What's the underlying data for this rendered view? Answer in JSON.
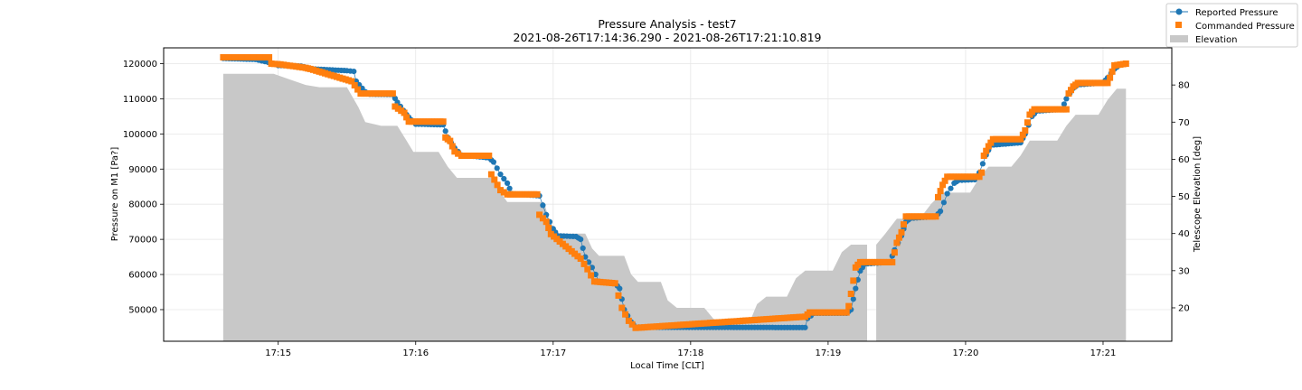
{
  "chart_data": {
    "type": "line",
    "title": "Pressure Analysis - test7",
    "subtitle": "2021-08-26T17:14:36.290 - 2021-08-26T17:21:10.819",
    "xlabel": "Local Time [CLT]",
    "ylabel": "Pressure on M1 [Pa?]",
    "y2label": "Telescope Elevation [deg]",
    "grid": true,
    "legend_position": "top-right",
    "x_ticks": [
      "17:15",
      "17:16",
      "17:17",
      "17:18",
      "17:19",
      "17:20",
      "17:21"
    ],
    "xlim": [
      "17:14:10",
      "17:21:30"
    ],
    "ylim": [
      41000,
      124500
    ],
    "y_ticks": [
      50000,
      60000,
      70000,
      80000,
      90000,
      100000,
      110000,
      120000
    ],
    "y2lim": [
      11,
      90
    ],
    "y2_ticks": [
      20,
      30,
      40,
      50,
      60,
      70,
      80
    ],
    "colors": {
      "reported": "#1f77b4",
      "commanded": "#ff7f0e",
      "elevation": "#c8c8c8"
    },
    "series": [
      {
        "name": "Reported Pressure",
        "marker": "circle",
        "axis": "left",
        "segments": [
          [
            "17:14:36",
            121500
          ],
          [
            "17:14:50",
            121200
          ],
          [
            "17:14:57",
            120200
          ],
          [
            "17:15:00",
            119500
          ],
          [
            "17:15:10",
            119300
          ],
          [
            "17:15:15",
            118500
          ],
          [
            "17:15:30",
            118000
          ],
          [
            "17:15:33",
            117800
          ],
          [
            "17:15:34",
            115000
          ],
          [
            "17:15:38",
            112000
          ],
          [
            "17:15:40",
            111300
          ],
          [
            "17:15:50",
            111200
          ],
          [
            "17:15:52",
            109000
          ],
          [
            "17:15:56",
            105500
          ],
          [
            "17:15:58",
            104000
          ],
          [
            "17:16:00",
            102800
          ],
          [
            "17:16:12",
            102600
          ],
          [
            "17:16:14",
            99000
          ],
          [
            "17:16:17",
            96000
          ],
          [
            "17:16:20",
            94000
          ],
          [
            "17:16:32",
            93200
          ],
          [
            "17:16:34",
            92000
          ],
          [
            "17:16:37",
            88500
          ],
          [
            "17:16:40",
            86000
          ],
          [
            "17:16:42",
            83000
          ],
          [
            "17:16:54",
            82400
          ],
          [
            "17:16:57",
            77000
          ],
          [
            "17:17:00",
            73000
          ],
          [
            "17:17:02",
            71000
          ],
          [
            "17:17:10",
            70800
          ],
          [
            "17:17:12",
            70000
          ],
          [
            "17:17:14",
            65000
          ],
          [
            "17:17:17",
            62000
          ],
          [
            "17:17:20",
            58000
          ],
          [
            "17:17:27",
            57500
          ],
          [
            "17:17:29",
            56000
          ],
          [
            "17:17:31",
            50000
          ],
          [
            "17:17:34",
            46500
          ],
          [
            "17:17:36",
            45000
          ],
          [
            "17:18:50",
            44900
          ],
          [
            "17:18:51",
            47500
          ],
          [
            "17:18:54",
            49000
          ],
          [
            "17:19:08",
            49000
          ],
          [
            "17:19:10",
            50000
          ],
          [
            "17:19:12",
            56000
          ],
          [
            "17:19:14",
            61000
          ],
          [
            "17:19:16",
            63000
          ],
          [
            "17:19:27",
            63500
          ],
          [
            "17:19:29",
            67000
          ],
          [
            "17:19:32",
            71000
          ],
          [
            "17:19:34",
            75000
          ],
          [
            "17:19:36",
            76000
          ],
          [
            "17:19:47",
            76500
          ],
          [
            "17:19:49",
            78000
          ],
          [
            "17:19:52",
            83000
          ],
          [
            "17:19:55",
            86000
          ],
          [
            "17:19:57",
            86800
          ],
          [
            "17:20:04",
            87000
          ],
          [
            "17:20:06",
            89000
          ],
          [
            "17:20:09",
            94000
          ],
          [
            "17:20:11",
            96800
          ],
          [
            "17:20:24",
            97500
          ],
          [
            "17:20:26",
            100000
          ],
          [
            "17:20:29",
            105000
          ],
          [
            "17:20:31",
            106500
          ],
          [
            "17:20:42",
            107000
          ],
          [
            "17:20:44",
            110000
          ],
          [
            "17:20:47",
            113000
          ],
          [
            "17:20:49",
            114000
          ],
          [
            "17:21:00",
            114500
          ],
          [
            "17:21:02",
            116000
          ],
          [
            "17:21:05",
            118500
          ],
          [
            "17:21:07",
            119500
          ],
          [
            "17:21:10",
            120000
          ]
        ]
      },
      {
        "name": "Commanded Pressure",
        "marker": "square",
        "axis": "left",
        "segments": [
          [
            "17:14:36",
            121800
          ],
          [
            "17:14:56",
            121800
          ],
          [
            "17:14:57",
            120000
          ],
          [
            "17:15:01",
            119800
          ],
          [
            "17:15:12",
            118800
          ],
          [
            "17:15:14",
            118500
          ],
          [
            "17:15:32",
            115000
          ],
          [
            "17:15:36",
            111500
          ],
          [
            "17:15:50",
            111500
          ],
          [
            "17:15:51",
            107800
          ],
          [
            "17:15:55",
            106000
          ],
          [
            "17:15:57",
            103500
          ],
          [
            "17:16:12",
            103500
          ],
          [
            "17:16:13",
            99000
          ],
          [
            "17:16:15",
            98000
          ],
          [
            "17:16:17",
            95000
          ],
          [
            "17:16:20",
            93800
          ],
          [
            "17:16:32",
            93800
          ],
          [
            "17:16:33",
            88500
          ],
          [
            "17:16:37",
            84000
          ],
          [
            "17:16:40",
            82800
          ],
          [
            "17:16:53",
            82800
          ],
          [
            "17:16:54",
            77000
          ],
          [
            "17:16:57",
            75000
          ],
          [
            "17:16:59",
            71500
          ],
          [
            "17:17:12",
            64500
          ],
          [
            "17:17:15",
            61500
          ],
          [
            "17:17:18",
            58000
          ],
          [
            "17:17:27",
            57500
          ],
          [
            "17:17:30",
            50500
          ],
          [
            "17:17:33",
            46800
          ],
          [
            "17:17:36",
            44800
          ],
          [
            "17:18:50",
            48000
          ],
          [
            "17:18:52",
            49200
          ],
          [
            "17:19:08",
            49200
          ],
          [
            "17:19:09",
            51000
          ],
          [
            "17:19:10",
            54500
          ],
          [
            "17:19:12",
            62000
          ],
          [
            "17:19:14",
            63500
          ],
          [
            "17:19:28",
            63500
          ],
          [
            "17:19:30",
            69000
          ],
          [
            "17:19:32",
            72000
          ],
          [
            "17:19:34",
            76500
          ],
          [
            "17:19:47",
            76500
          ],
          [
            "17:19:48",
            82000
          ],
          [
            "17:19:50",
            85500
          ],
          [
            "17:19:52",
            87800
          ],
          [
            "17:20:06",
            87800
          ],
          [
            "17:20:07",
            89000
          ],
          [
            "17:20:08",
            93800
          ],
          [
            "17:20:10",
            96500
          ],
          [
            "17:20:12",
            98500
          ],
          [
            "17:20:24",
            98500
          ],
          [
            "17:20:26",
            101000
          ],
          [
            "17:20:28",
            105500
          ],
          [
            "17:20:30",
            107000
          ],
          [
            "17:20:44",
            107000
          ],
          [
            "17:20:45",
            111500
          ],
          [
            "17:20:47",
            113500
          ],
          [
            "17:20:49",
            114500
          ],
          [
            "17:21:02",
            114500
          ],
          [
            "17:21:03",
            116000
          ],
          [
            "17:21:05",
            119500
          ],
          [
            "17:21:10",
            120000
          ]
        ]
      },
      {
        "name": "Elevation",
        "style": "area",
        "axis": "right",
        "points": [
          [
            "17:14:36",
            83
          ],
          [
            "17:14:58",
            83
          ],
          [
            "17:15:05",
            81.5
          ],
          [
            "17:15:12",
            80
          ],
          [
            "17:15:18",
            79.4
          ],
          [
            "17:15:30",
            79.4
          ],
          [
            "17:15:35",
            74
          ],
          [
            "17:15:38",
            70
          ],
          [
            "17:15:45",
            69
          ],
          [
            "17:15:52",
            69
          ],
          [
            "17:15:56",
            65
          ],
          [
            "17:15:59",
            62
          ],
          [
            "17:16:10",
            62
          ],
          [
            "17:16:14",
            58
          ],
          [
            "17:16:18",
            55
          ],
          [
            "17:16:34",
            55
          ],
          [
            "17:16:37",
            51
          ],
          [
            "17:16:40",
            48.5
          ],
          [
            "17:16:56",
            48.5
          ],
          [
            "17:16:59",
            42
          ],
          [
            "17:17:01",
            40
          ],
          [
            "17:17:14",
            40
          ],
          [
            "17:17:17",
            36
          ],
          [
            "17:17:20",
            34
          ],
          [
            "17:17:31",
            34
          ],
          [
            "17:17:34",
            29
          ],
          [
            "17:17:37",
            27
          ],
          [
            "17:17:47",
            27
          ],
          [
            "17:17:50",
            22
          ],
          [
            "17:17:54",
            20
          ],
          [
            "17:18:06",
            20
          ],
          [
            "17:18:10",
            17
          ],
          [
            "17:18:14",
            16.5
          ],
          [
            "17:18:26",
            16.5
          ],
          [
            "17:18:29",
            21
          ],
          [
            "17:18:33",
            23
          ],
          [
            "17:18:42",
            23
          ],
          [
            "17:18:46",
            28
          ],
          [
            "17:18:50",
            30
          ],
          [
            "17:19:02",
            30
          ],
          [
            "17:19:06",
            35
          ],
          [
            "17:19:10",
            37
          ],
          [
            "17:19:17",
            37
          ],
          [
            "17:19:17",
            null
          ],
          [
            "17:19:21",
            null
          ],
          [
            "17:19:21",
            37
          ],
          [
            "17:19:25",
            40
          ],
          [
            "17:19:30",
            44
          ],
          [
            "17:19:40",
            44
          ],
          [
            "17:19:45",
            48
          ],
          [
            "17:19:50",
            51
          ],
          [
            "17:20:02",
            51
          ],
          [
            "17:20:06",
            55
          ],
          [
            "17:20:10",
            58
          ],
          [
            "17:20:20",
            58
          ],
          [
            "17:20:24",
            61
          ],
          [
            "17:20:28",
            65
          ],
          [
            "17:20:40",
            65
          ],
          [
            "17:20:44",
            69
          ],
          [
            "17:20:48",
            72
          ],
          [
            "17:20:58",
            72
          ],
          [
            "17:21:02",
            76
          ],
          [
            "17:21:06",
            79
          ],
          [
            "17:21:10",
            79
          ]
        ]
      }
    ]
  }
}
